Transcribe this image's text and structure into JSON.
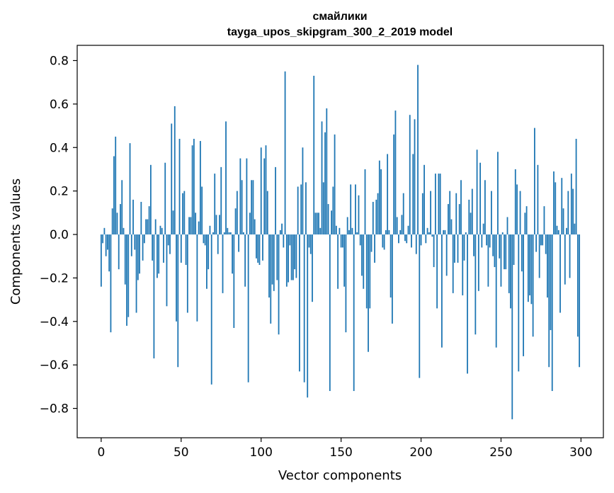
{
  "chart_data": {
    "type": "bar",
    "title": "смайлики",
    "subtitle": "tayga_upos_skipgram_300_2_2019 model",
    "xlabel": "Vector components",
    "ylabel": "Components values",
    "xlim": [
      -15,
      314
    ],
    "ylim": [
      -0.935,
      0.87
    ],
    "xticks": [
      0,
      50,
      100,
      150,
      200,
      250,
      300
    ],
    "xtick_labels": [
      "0",
      "50",
      "100",
      "150",
      "200",
      "250",
      "300"
    ],
    "yticks": [
      -0.8,
      -0.6,
      -0.4,
      -0.2,
      0.0,
      0.2,
      0.4,
      0.6,
      0.8
    ],
    "ytick_labels": [
      "−0.8",
      "−0.6",
      "−0.4",
      "−0.2",
      "0.0",
      "0.2",
      "0.4",
      "0.6",
      "0.8"
    ],
    "grid": false,
    "bar_color": "#1f77b4",
    "values": [
      -0.24,
      -0.04,
      0.03,
      -0.1,
      -0.07,
      -0.17,
      -0.45,
      0.12,
      0.36,
      0.45,
      0.1,
      -0.16,
      0.14,
      0.25,
      0.03,
      -0.23,
      -0.42,
      -0.38,
      0.42,
      -0.1,
      0.16,
      -0.07,
      -0.36,
      -0.21,
      -0.18,
      0.15,
      -0.12,
      -0.04,
      0.07,
      0.07,
      0.13,
      0.32,
      -0.12,
      -0.57,
      0.07,
      -0.2,
      -0.18,
      0.04,
      0.03,
      -0.13,
      0.33,
      -0.33,
      -0.05,
      -0.09,
      0.51,
      0.11,
      0.59,
      -0.4,
      -0.61,
      0.44,
      -0.13,
      0.19,
      0.2,
      -0.14,
      -0.36,
      0.08,
      0.08,
      0.41,
      0.44,
      0.1,
      -0.4,
      0.06,
      0.43,
      0.22,
      -0.04,
      -0.05,
      -0.25,
      -0.16,
      0.04,
      -0.69,
      0.01,
      0.28,
      0.09,
      -0.09,
      0.09,
      0.31,
      -0.27,
      0.01,
      0.52,
      0.03,
      0.01,
      0.01,
      -0.18,
      -0.43,
      0.12,
      0.2,
      -0.08,
      0.35,
      0.25,
      0.01,
      -0.24,
      0.35,
      -0.68,
      0.1,
      0.25,
      0.25,
      0.07,
      -0.11,
      -0.13,
      -0.14,
      0.4,
      -0.12,
      0.35,
      0.41,
      0.2,
      -0.29,
      -0.41,
      -0.23,
      -0.26,
      0.31,
      -0.21,
      -0.46,
      0.02,
      0.05,
      -0.06,
      0.75,
      -0.24,
      -0.22,
      -0.05,
      -0.21,
      -0.21,
      -0.16,
      -0.2,
      0.22,
      -0.63,
      0.23,
      0.4,
      -0.68,
      0.24,
      -0.75,
      -0.06,
      -0.09,
      -0.31,
      0.73,
      0.1,
      0.1,
      0.1,
      0.03,
      0.52,
      0.24,
      0.47,
      0.58,
      0.14,
      -0.72,
      0.11,
      0.22,
      0.46,
      0.04,
      -0.25,
      0.03,
      -0.06,
      -0.06,
      -0.24,
      -0.45,
      0.08,
      0.02,
      0.23,
      0.03,
      -0.72,
      0.23,
      0.01,
      0.18,
      -0.05,
      -0.19,
      -0.25,
      0.3,
      -0.34,
      -0.54,
      -0.34,
      -0.08,
      0.15,
      -0.13,
      0.16,
      0.19,
      0.34,
      0.3,
      -0.06,
      -0.07,
      0.02,
      0.37,
      0.02,
      -0.29,
      -0.41,
      0.46,
      0.57,
      0.08,
      -0.04,
      0.02,
      0.09,
      0.19,
      -0.03,
      -0.04,
      0.04,
      0.55,
      -0.06,
      0.37,
      0.53,
      -0.09,
      0.78,
      -0.66,
      -0.05,
      0.19,
      0.32,
      -0.04,
      0.03,
      0.01,
      0.2,
      -0.01,
      -0.15,
      0.28,
      -0.34,
      0.28,
      0.28,
      -0.52,
      0.02,
      0.02,
      -0.19,
      0.14,
      0.2,
      0.07,
      -0.27,
      -0.13,
      0.19,
      -0.13,
      0.14,
      0.25,
      -0.28,
      -0.12,
      0.01,
      -0.64,
      0.16,
      0.1,
      0.21,
      -0.1,
      -0.46,
      0.39,
      -0.26,
      0.33,
      -0.06,
      0.05,
      0.25,
      -0.05,
      -0.24,
      -0.06,
      0.2,
      -0.1,
      -0.15,
      -0.52,
      0.38,
      -0.11,
      -0.24,
      0.01,
      -0.16,
      -0.16,
      0.08,
      -0.27,
      -0.34,
      -0.85,
      -0.14,
      0.3,
      0.23,
      -0.63,
      0.2,
      -0.17,
      -0.56,
      0.1,
      0.13,
      -0.31,
      -0.28,
      -0.32,
      -0.47,
      0.49,
      -0.08,
      0.32,
      -0.2,
      -0.05,
      -0.05,
      0.13,
      -0.09,
      -0.29,
      -0.61,
      -0.44,
      -0.72,
      0.29,
      0.24,
      0.04,
      0.02,
      -0.36,
      0.26,
      0.12,
      -0.23,
      0.03,
      0.2,
      -0.2,
      0.28,
      0.21,
      0.05,
      0.44,
      -0.47,
      -0.61
    ]
  }
}
